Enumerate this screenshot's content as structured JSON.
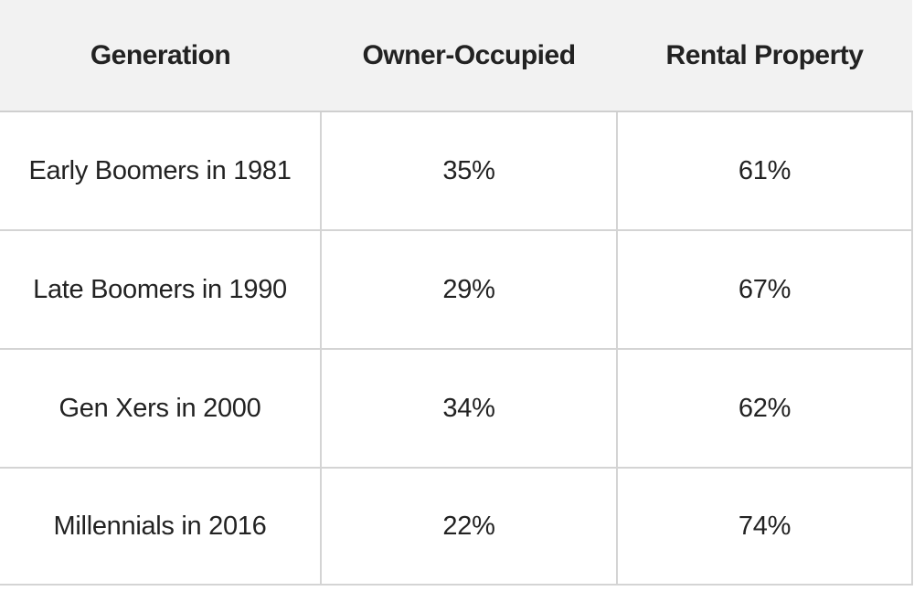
{
  "chart_data": {
    "type": "table",
    "columns": [
      "Generation",
      "Owner-Occupied",
      "Rental Property"
    ],
    "rows": [
      [
        "Early Boomers in 1981",
        "35%",
        "61%"
      ],
      [
        "Late Boomers in 1990",
        "29%",
        "67%"
      ],
      [
        "Gen Xers in 2000",
        "34%",
        "62%"
      ],
      [
        "Millennials in 2016",
        "22%",
        "74%"
      ]
    ]
  },
  "colors": {
    "header_background": "#f2f2f2",
    "grid_line": "#d4d4d4",
    "text": "#222222"
  }
}
